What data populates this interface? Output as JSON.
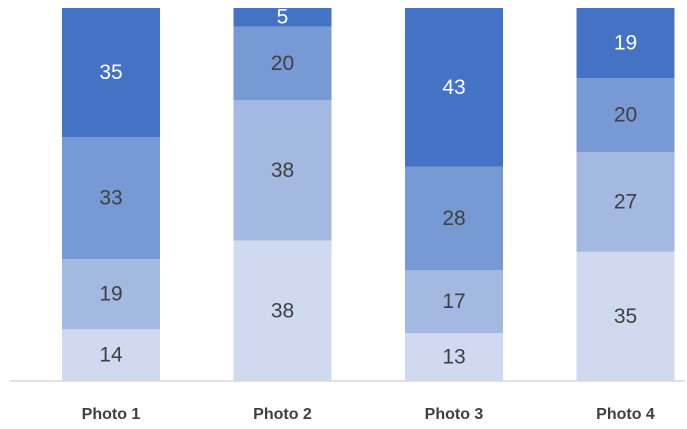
{
  "chart_data": {
    "type": "bar",
    "stacked": true,
    "categories": [
      "Photo 1",
      "Photo 2",
      "Photo 3",
      "Photo 4"
    ],
    "series": [
      {
        "values": [
          14,
          38,
          13,
          35
        ],
        "color": "#cfdaf0"
      },
      {
        "values": [
          19,
          38,
          17,
          27
        ],
        "color": "#a3b9e2"
      },
      {
        "values": [
          33,
          20,
          28,
          20
        ],
        "color": "#7799d4"
      },
      {
        "values": [
          35,
          5,
          43,
          19
        ],
        "color": "#4472c4"
      }
    ],
    "title": "",
    "xlabel": "",
    "ylabel": "",
    "ylim": [
      0,
      101
    ],
    "grid": false,
    "legend": "none",
    "label_colors": {
      "light": "#404040",
      "dark": "#ffffff"
    }
  }
}
